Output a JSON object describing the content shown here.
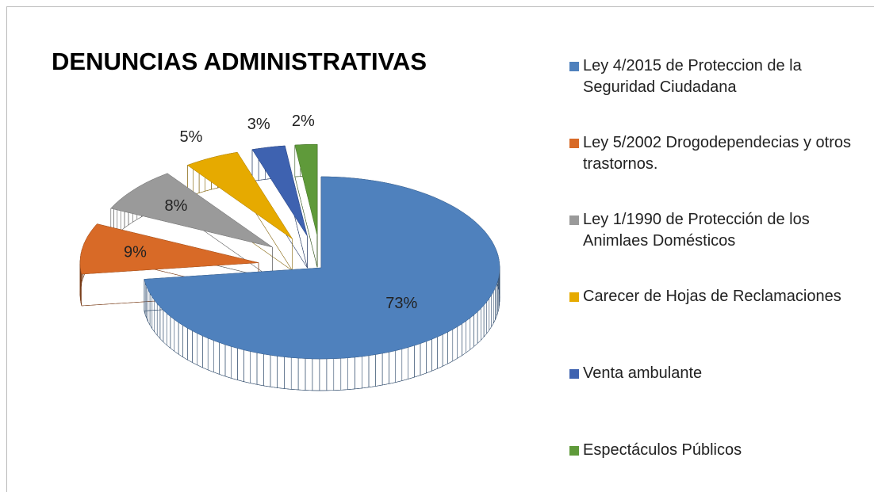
{
  "chart_data": {
    "type": "pie",
    "title": "DENUNCIAS ADMINISTRATIVAS",
    "categories": [
      "Ley 4/2015 de Proteccion de la Seguridad Ciudadana",
      "Ley 5/2002 Drogodependecias y otros trastornos.",
      "Ley 1/1990 de Protección de los Animlaes Domésticos",
      "Carecer de Hojas de Reclamaciones",
      "Venta ambulante",
      "Espectáculos Públicos"
    ],
    "values": [
      73,
      9,
      8,
      5,
      3,
      2
    ],
    "value_labels": [
      "73%",
      "9%",
      "8%",
      "5%",
      "3%",
      "2%"
    ],
    "colors": [
      "#4f81bd",
      "#d86a27",
      "#9a9a9a",
      "#e6aa00",
      "#3e62b0",
      "#5f9a3a"
    ]
  }
}
